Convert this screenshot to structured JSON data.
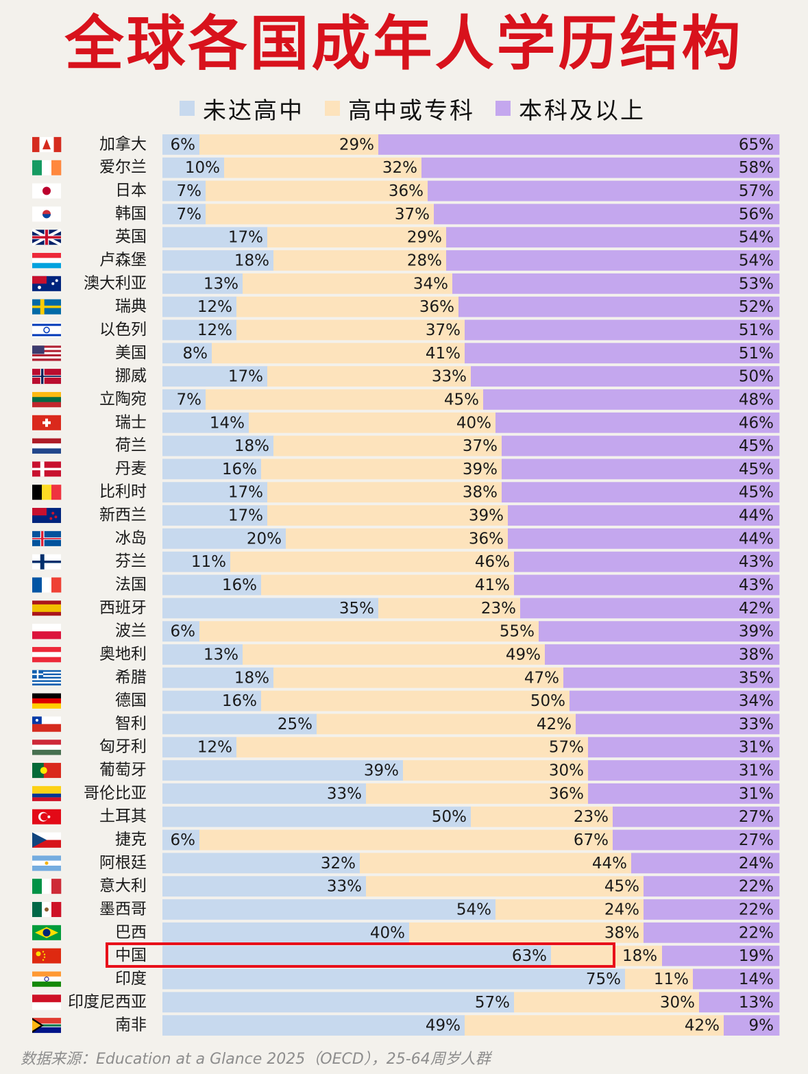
{
  "title": "全球各国成年人学历结构",
  "source": "数据来源：Education at a Glance 2025（OECD），25-64周岁人群",
  "colors": {
    "title": "#d8121c",
    "highlight": "#e8101a",
    "series": [
      "#c7d9ee",
      "#fde3bc",
      "#c4a7ee"
    ]
  },
  "highlight": "中国",
  "chart_data": {
    "type": "bar",
    "orientation": "horizontal",
    "stacked": true,
    "percent": true,
    "xlim": [
      0,
      100
    ],
    "legend": "top",
    "categories": [
      "加拿大",
      "爱尔兰",
      "日本",
      "韩国",
      "英国",
      "卢森堡",
      "澳大利亚",
      "瑞典",
      "以色列",
      "美国",
      "挪威",
      "立陶宛",
      "瑞士",
      "荷兰",
      "丹麦",
      "比利时",
      "新西兰",
      "冰岛",
      "芬兰",
      "法国",
      "西班牙",
      "波兰",
      "奥地利",
      "希腊",
      "德国",
      "智利",
      "匈牙利",
      "葡萄牙",
      "哥伦比亚",
      "土耳其",
      "捷克",
      "阿根廷",
      "意大利",
      "墨西哥",
      "巴西",
      "中国",
      "印度",
      "印度尼西亚",
      "南非"
    ],
    "series": [
      {
        "name": "未达高中",
        "values": [
          6,
          10,
          7,
          7,
          17,
          18,
          13,
          12,
          12,
          8,
          17,
          7,
          14,
          18,
          16,
          17,
          17,
          20,
          11,
          16,
          35,
          6,
          13,
          18,
          16,
          25,
          12,
          39,
          33,
          50,
          6,
          32,
          33,
          54,
          40,
          63,
          75,
          57,
          49
        ]
      },
      {
        "name": "高中或专科",
        "values": [
          29,
          32,
          36,
          37,
          29,
          28,
          34,
          36,
          37,
          41,
          33,
          45,
          40,
          37,
          39,
          38,
          39,
          36,
          46,
          41,
          23,
          55,
          49,
          47,
          50,
          42,
          57,
          30,
          36,
          23,
          67,
          44,
          45,
          24,
          38,
          18,
          11,
          30,
          42
        ]
      },
      {
        "name": "本科及以上",
        "values": [
          65,
          58,
          57,
          56,
          54,
          54,
          53,
          52,
          51,
          51,
          50,
          48,
          46,
          45,
          45,
          45,
          44,
          44,
          43,
          43,
          42,
          39,
          38,
          35,
          34,
          33,
          31,
          31,
          31,
          27,
          27,
          24,
          22,
          22,
          22,
          19,
          14,
          13,
          9
        ]
      }
    ]
  },
  "flags": [
    "canada-flag",
    "ireland-flag",
    "japan-flag",
    "south-korea-flag",
    "uk-flag",
    "luxembourg-flag",
    "australia-flag",
    "sweden-flag",
    "israel-flag",
    "usa-flag",
    "norway-flag",
    "lithuania-flag",
    "switzerland-flag",
    "netherlands-flag",
    "denmark-flag",
    "belgium-flag",
    "new-zealand-flag",
    "iceland-flag",
    "finland-flag",
    "france-flag",
    "spain-flag",
    "poland-flag",
    "austria-flag",
    "greece-flag",
    "germany-flag",
    "chile-flag",
    "hungary-flag",
    "portugal-flag",
    "colombia-flag",
    "turkey-flag",
    "czech-flag",
    "argentina-flag",
    "italy-flag",
    "mexico-flag",
    "brazil-flag",
    "china-flag",
    "india-flag",
    "indonesia-flag",
    "south-africa-flag"
  ]
}
